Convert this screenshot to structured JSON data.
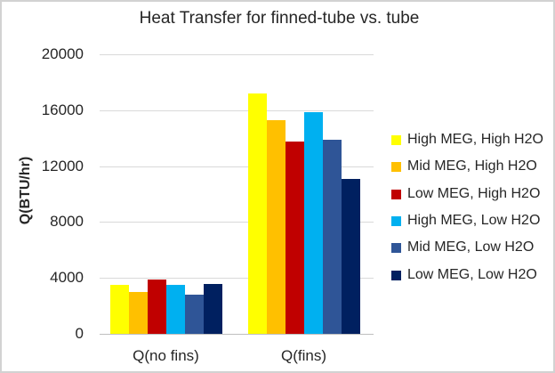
{
  "chart_data": {
    "type": "bar",
    "title": "Heat Transfer for finned-tube vs. tube",
    "ylabel": "Q(BTU/hr)",
    "xlabel": "",
    "categories": [
      "Q(no fins)",
      "Q(fins)"
    ],
    "series": [
      {
        "name": "High MEG, High H2O",
        "color": "#FFFF00",
        "values": [
          3520,
          17200
        ]
      },
      {
        "name": "Mid MEG, High H2O",
        "color": "#FFC000",
        "values": [
          2970,
          15300
        ]
      },
      {
        "name": "Low MEG, High H2O",
        "color": "#C00000",
        "values": [
          3860,
          13780
        ]
      },
      {
        "name": "High MEG, Low H2O",
        "color": "#00B0F0",
        "values": [
          3500,
          15880
        ]
      },
      {
        "name": "Mid MEG, Low H2O",
        "color": "#2F5597",
        "values": [
          2800,
          13900
        ]
      },
      {
        "name": "Low MEG, Low H2O",
        "color": "#002060",
        "values": [
          3540,
          11060
        ]
      }
    ],
    "y_axis": {
      "min": 0,
      "max": 20000,
      "step": 4000,
      "ticks": [
        0,
        4000,
        8000,
        12000,
        16000,
        20000
      ]
    },
    "legend_position": "right",
    "grid": true,
    "colors": {
      "gridline": "#d9d9d9",
      "axis_line": "#bfbfbf",
      "text": "#262626",
      "background": "#ffffff"
    }
  }
}
